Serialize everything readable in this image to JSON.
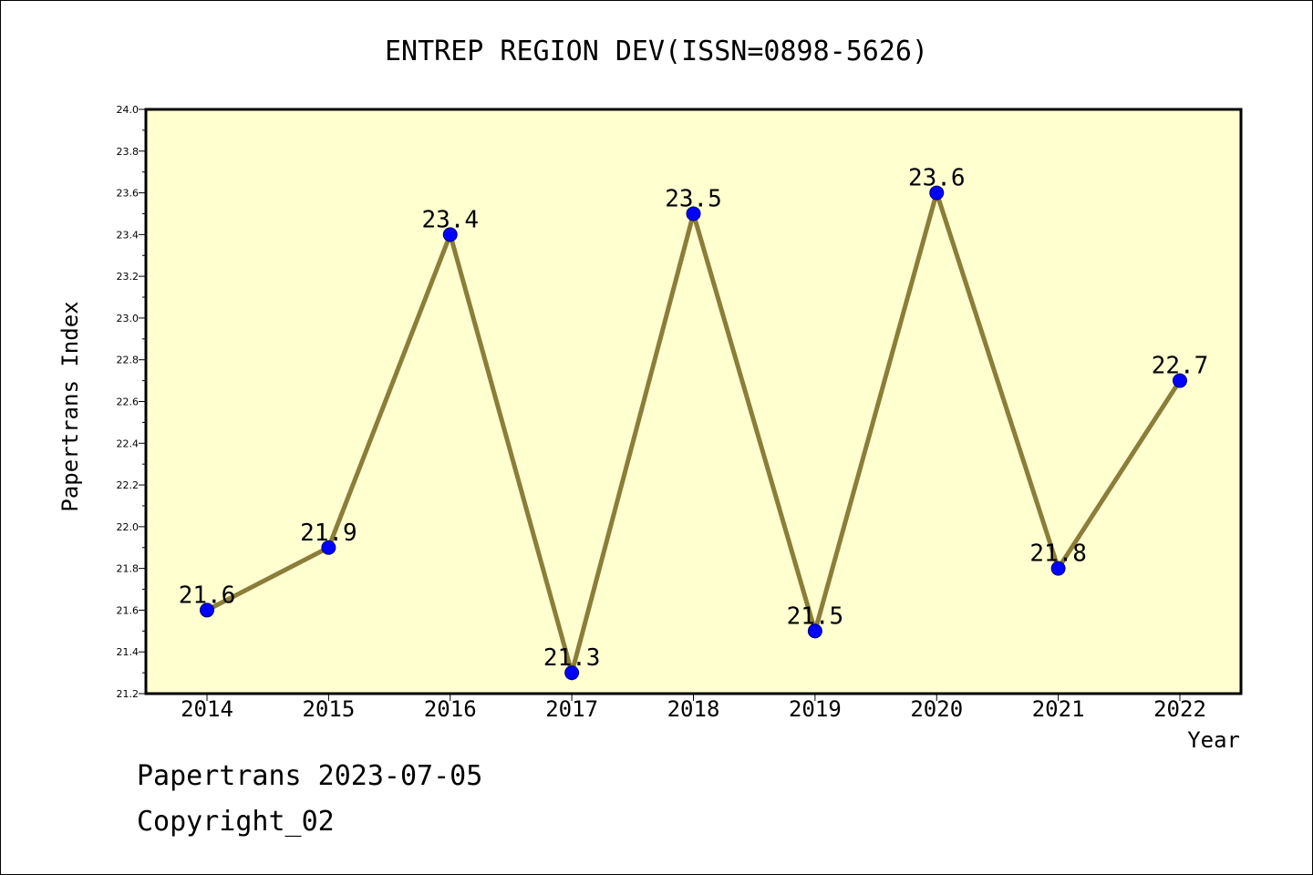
{
  "chart_data": {
    "type": "line",
    "title": "ENTREP REGION DEV(ISSN=0898-5626)",
    "xlabel": "Year",
    "ylabel": "Papertrans Index",
    "categories": [
      "2014",
      "2015",
      "2016",
      "2017",
      "2018",
      "2019",
      "2020",
      "2021",
      "2022"
    ],
    "series": [
      {
        "values": [
          21.6,
          21.9,
          23.4,
          21.3,
          23.5,
          21.5,
          23.6,
          21.8,
          22.7
        ],
        "data_labels": [
          "21.6",
          "21.9",
          "23.4",
          "21.3",
          "23.5",
          "21.5",
          "23.6",
          "21.8",
          "22.7"
        ]
      }
    ],
    "ylim": [
      21.2,
      24.0
    ],
    "yticks": [
      "21.2",
      "21.4",
      "21.6",
      "21.8",
      "22.0",
      "22.2",
      "22.4",
      "22.6",
      "22.8",
      "23.0",
      "23.2",
      "23.4",
      "23.6",
      "23.8",
      "24.0"
    ],
    "grid": false,
    "legend": "none",
    "colors": {
      "plot_background": "#ffffd0",
      "line": "#8b7d3a",
      "marker": "#0000ff",
      "marker_edge": "#00007a",
      "axis": "#000000"
    }
  },
  "footer": {
    "line1": "Papertrans 2023-07-05",
    "line2": "Copyright_02"
  }
}
